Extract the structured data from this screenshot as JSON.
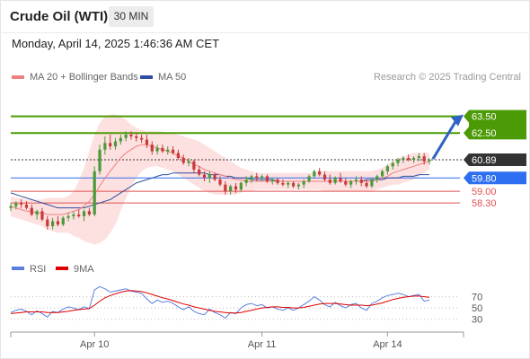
{
  "header": {
    "symbol": "Crude Oil (WTI)",
    "timeframe": "30 MIN"
  },
  "datetime": "Monday, April 14, 2025 1:46:36 AM CET",
  "legend": {
    "ma20_label": "MA 20 + Bollinger Bands",
    "ma50_label": "MA 50",
    "credit": "Research © 2025 Trading Central"
  },
  "colors": {
    "ma20": "#f08080",
    "ma50": "#2c4f9e",
    "bollinger_fill": "#fde0e0",
    "resistance": "#4b9a06",
    "pivot": "#2d6ff0",
    "support": "#e05050",
    "last_price": "#333333",
    "rsi": "#5b7fe0",
    "rsi_ma": "#e00000",
    "candle_up": "#4a9a3a",
    "candle_down": "#c83a3a"
  },
  "chart_data": [
    {
      "type": "candlestick",
      "title": "",
      "x_ticks": [
        "Apr 10",
        "Apr 11",
        "Apr 14"
      ],
      "ylim": [
        56.2,
        65.1
      ],
      "levels": [
        {
          "value": 63.5,
          "label": "63.50",
          "kind": "resistance"
        },
        {
          "value": 62.5,
          "label": "62.50",
          "kind": "resistance"
        },
        {
          "value": 60.89,
          "label": "60.89",
          "kind": "last"
        },
        {
          "value": 59.8,
          "label": "59.80",
          "kind": "pivot"
        },
        {
          "value": 59.0,
          "label": "59.00",
          "kind": "support"
        },
        {
          "value": 58.3,
          "label": "58.30",
          "kind": "support"
        }
      ],
      "ohlc": [
        [
          58.0,
          58.3,
          57.8,
          58.1
        ],
        [
          58.1,
          58.4,
          57.9,
          58.3
        ],
        [
          58.3,
          58.5,
          58.0,
          58.2
        ],
        [
          58.2,
          58.4,
          57.9,
          58.0
        ],
        [
          58.0,
          58.2,
          57.5,
          57.6
        ],
        [
          57.6,
          57.9,
          57.3,
          57.8
        ],
        [
          57.8,
          58.0,
          57.2,
          57.3
        ],
        [
          57.3,
          57.5,
          56.7,
          56.9
        ],
        [
          56.9,
          57.4,
          56.7,
          57.2
        ],
        [
          57.2,
          57.5,
          56.9,
          57.0
        ],
        [
          57.0,
          57.5,
          56.9,
          57.4
        ],
        [
          57.4,
          57.7,
          57.2,
          57.5
        ],
        [
          57.5,
          57.8,
          57.3,
          57.6
        ],
        [
          57.6,
          57.9,
          57.4,
          57.5
        ],
        [
          57.5,
          57.9,
          57.2,
          57.8
        ],
        [
          57.8,
          58.0,
          57.5,
          57.6
        ],
        [
          57.6,
          60.5,
          57.5,
          60.2
        ],
        [
          60.2,
          61.8,
          60.0,
          61.5
        ],
        [
          61.5,
          62.3,
          61.2,
          61.9
        ],
        [
          61.9,
          62.4,
          61.5,
          61.7
        ],
        [
          61.7,
          62.2,
          61.5,
          62.0
        ],
        [
          62.0,
          62.4,
          61.8,
          62.2
        ],
        [
          62.2,
          62.6,
          62.0,
          62.4
        ],
        [
          62.4,
          62.6,
          62.1,
          62.3
        ],
        [
          62.3,
          62.5,
          62.0,
          62.2
        ],
        [
          62.2,
          62.4,
          61.9,
          62.1
        ],
        [
          62.1,
          62.4,
          61.6,
          61.8
        ],
        [
          61.8,
          62.0,
          61.2,
          61.4
        ],
        [
          61.4,
          61.8,
          61.2,
          61.6
        ],
        [
          61.6,
          61.8,
          61.3,
          61.4
        ],
        [
          61.4,
          61.7,
          61.2,
          61.5
        ],
        [
          61.5,
          61.7,
          61.2,
          61.3
        ],
        [
          61.3,
          61.5,
          60.9,
          61.0
        ],
        [
          61.0,
          61.2,
          60.6,
          60.7
        ],
        [
          60.7,
          61.0,
          60.5,
          60.8
        ],
        [
          60.8,
          60.9,
          60.1,
          60.3
        ],
        [
          60.3,
          60.5,
          59.9,
          60.0
        ],
        [
          60.0,
          60.2,
          59.6,
          59.8
        ],
        [
          59.8,
          60.2,
          59.5,
          60.0
        ],
        [
          60.0,
          60.1,
          59.6,
          59.7
        ],
        [
          59.7,
          59.9,
          59.3,
          59.4
        ],
        [
          59.4,
          59.6,
          58.8,
          59.0
        ],
        [
          59.0,
          59.4,
          58.8,
          59.3
        ],
        [
          59.3,
          59.5,
          58.9,
          59.1
        ],
        [
          59.1,
          59.6,
          59.0,
          59.5
        ],
        [
          59.5,
          59.9,
          59.3,
          59.7
        ],
        [
          59.7,
          60.0,
          59.5,
          59.9
        ],
        [
          59.9,
          60.1,
          59.6,
          59.8
        ],
        [
          59.8,
          60.0,
          59.6,
          59.9
        ],
        [
          59.9,
          60.0,
          59.5,
          59.6
        ],
        [
          59.6,
          59.8,
          59.4,
          59.7
        ],
        [
          59.7,
          59.8,
          59.4,
          59.5
        ],
        [
          59.5,
          59.7,
          59.3,
          59.4
        ],
        [
          59.4,
          59.6,
          59.2,
          59.5
        ],
        [
          59.5,
          59.6,
          59.2,
          59.3
        ],
        [
          59.3,
          59.5,
          59.1,
          59.4
        ],
        [
          59.4,
          59.7,
          59.2,
          59.6
        ],
        [
          59.6,
          60.0,
          59.5,
          59.9
        ],
        [
          59.9,
          60.3,
          59.8,
          60.2
        ],
        [
          60.2,
          60.4,
          59.9,
          60.0
        ],
        [
          60.0,
          60.2,
          59.6,
          59.7
        ],
        [
          59.7,
          60.0,
          59.4,
          59.5
        ],
        [
          59.5,
          59.9,
          59.4,
          59.8
        ],
        [
          59.8,
          60.1,
          59.5,
          59.6
        ],
        [
          59.6,
          59.8,
          59.3,
          59.4
        ],
        [
          59.4,
          59.7,
          59.2,
          59.6
        ],
        [
          59.6,
          59.9,
          59.4,
          59.7
        ],
        [
          59.7,
          59.9,
          59.3,
          59.5
        ],
        [
          59.5,
          59.7,
          59.2,
          59.3
        ],
        [
          59.3,
          59.8,
          59.2,
          59.7
        ],
        [
          59.7,
          60.0,
          59.5,
          59.9
        ],
        [
          59.9,
          60.3,
          59.8,
          60.2
        ],
        [
          60.2,
          60.6,
          60.0,
          60.5
        ],
        [
          60.5,
          60.8,
          60.3,
          60.7
        ],
        [
          60.7,
          61.0,
          60.5,
          60.9
        ],
        [
          60.9,
          61.1,
          60.7,
          61.0
        ],
        [
          61.0,
          61.2,
          60.8,
          60.9
        ],
        [
          60.9,
          61.1,
          60.7,
          61.0
        ],
        [
          61.0,
          61.3,
          60.8,
          61.1
        ],
        [
          61.1,
          61.3,
          60.6,
          60.8
        ],
        [
          60.8,
          61.0,
          60.6,
          60.89
        ]
      ],
      "ma20": [
        58.1,
        58.0,
        57.9,
        57.8,
        57.8,
        57.7,
        57.7,
        57.6,
        57.6,
        57.6,
        57.6,
        57.7,
        57.8,
        57.9,
        58.1,
        58.4,
        58.8,
        59.3,
        59.8,
        60.2,
        60.6,
        61.0,
        61.3,
        61.5,
        61.7,
        61.8,
        61.8,
        61.7,
        61.6,
        61.5,
        61.4,
        61.3,
        61.1,
        61.0,
        60.8,
        60.6,
        60.5,
        60.3,
        60.2,
        60.1,
        60.0,
        59.9,
        59.8,
        59.7,
        59.7,
        59.6,
        59.6,
        59.6,
        59.6,
        59.6,
        59.6,
        59.6,
        59.6,
        59.6,
        59.6,
        59.6,
        59.6,
        59.6,
        59.6,
        59.6,
        59.6,
        59.6,
        59.6,
        59.6,
        59.6,
        59.6,
        59.6,
        59.6,
        59.6,
        59.6,
        59.7,
        59.8,
        59.9,
        60.1,
        60.2,
        60.3,
        60.4,
        60.5,
        60.6,
        60.7,
        60.8
      ],
      "ma50": [
        58.9,
        58.8,
        58.7,
        58.6,
        58.5,
        58.4,
        58.3,
        58.2,
        58.1,
        58.0,
        58.0,
        58.0,
        58.0,
        58.0,
        58.0,
        58.1,
        58.2,
        58.3,
        58.4,
        58.5,
        58.7,
        58.9,
        59.1,
        59.3,
        59.5,
        59.6,
        59.7,
        59.8,
        59.9,
        60.0,
        60.0,
        60.1,
        60.1,
        60.1,
        60.1,
        60.1,
        60.1,
        60.1,
        60.0,
        60.0,
        60.0,
        59.9,
        59.9,
        59.8,
        59.8,
        59.8,
        59.7,
        59.7,
        59.7,
        59.7,
        59.7,
        59.6,
        59.6,
        59.6,
        59.6,
        59.6,
        59.6,
        59.6,
        59.6,
        59.6,
        59.6,
        59.6,
        59.6,
        59.6,
        59.6,
        59.6,
        59.6,
        59.6,
        59.7,
        59.7,
        59.7,
        59.7,
        59.8,
        59.8,
        59.8,
        59.9,
        59.9,
        59.9,
        60.0,
        60.0,
        60.0
      ],
      "bb_upper": [
        58.7,
        58.6,
        58.6,
        58.5,
        58.5,
        58.5,
        58.5,
        58.6,
        58.6,
        58.6,
        58.6,
        58.7,
        59.0,
        59.6,
        60.4,
        61.4,
        62.4,
        63.1,
        63.5,
        63.6,
        63.6,
        63.5,
        63.3,
        63.0,
        62.8,
        62.7,
        62.6,
        62.6,
        62.6,
        62.6,
        62.5,
        62.5,
        62.4,
        62.3,
        62.2,
        62.1,
        62.0,
        61.8,
        61.6,
        61.4,
        61.2,
        61.0,
        60.8,
        60.6,
        60.4,
        60.3,
        60.2,
        60.1,
        60.1,
        60.1,
        60.1,
        60.1,
        60.1,
        60.1,
        60.1,
        60.1,
        60.1,
        60.1,
        60.1,
        60.2,
        60.2,
        60.2,
        60.2,
        60.2,
        60.2,
        60.2,
        60.2,
        60.2,
        60.2,
        60.2,
        60.3,
        60.4,
        60.6,
        60.8,
        61.0,
        61.1,
        61.2,
        61.3,
        61.3,
        61.3,
        61.3
      ],
      "bb_lower": [
        57.5,
        57.4,
        57.3,
        57.2,
        57.1,
        57.0,
        56.9,
        56.7,
        56.6,
        56.5,
        56.5,
        56.5,
        56.3,
        56.2,
        56.0,
        55.9,
        55.8,
        55.9,
        56.1,
        56.5,
        57.0,
        57.8,
        58.6,
        59.2,
        59.8,
        60.2,
        60.4,
        60.5,
        60.5,
        60.4,
        60.3,
        60.2,
        60.0,
        59.8,
        59.6,
        59.4,
        59.2,
        59.0,
        58.9,
        58.8,
        58.8,
        58.8,
        58.8,
        58.8,
        58.9,
        59.0,
        59.0,
        59.1,
        59.1,
        59.1,
        59.1,
        59.1,
        59.1,
        59.1,
        59.1,
        59.1,
        59.1,
        59.1,
        59.1,
        59.1,
        59.0,
        59.0,
        59.0,
        59.0,
        59.0,
        59.0,
        59.0,
        59.0,
        59.0,
        59.0,
        59.1,
        59.2,
        59.3,
        59.4,
        59.4,
        59.5,
        59.6,
        59.7,
        59.9,
        60.1,
        60.3
      ]
    },
    {
      "type": "line",
      "title": "",
      "series": [
        {
          "name": "RSI",
          "values": [
            42,
            46,
            48,
            44,
            38,
            45,
            40,
            34,
            44,
            42,
            48,
            52,
            50,
            47,
            52,
            49,
            82,
            88,
            84,
            78,
            80,
            82,
            84,
            80,
            78,
            76,
            66,
            58,
            64,
            60,
            62,
            58,
            52,
            47,
            52,
            44,
            40,
            38,
            48,
            42,
            38,
            32,
            42,
            40,
            50,
            56,
            58,
            54,
            56,
            50,
            52,
            48,
            46,
            50,
            46,
            50,
            56,
            62,
            70,
            64,
            56,
            52,
            60,
            54,
            50,
            56,
            58,
            50,
            46,
            58,
            62,
            68,
            72,
            74,
            76,
            74,
            70,
            72,
            74,
            62,
            64
          ]
        },
        {
          "name": "9MA",
          "values": [
            40,
            41,
            42,
            43,
            43,
            43,
            43,
            42,
            42,
            42,
            43,
            44,
            46,
            47,
            48,
            49,
            55,
            62,
            68,
            72,
            75,
            78,
            80,
            81,
            80,
            79,
            77,
            74,
            71,
            68,
            66,
            63,
            60,
            57,
            55,
            52,
            50,
            48,
            46,
            44,
            43,
            42,
            41,
            41,
            42,
            44,
            46,
            48,
            50,
            51,
            52,
            52,
            51,
            51,
            50,
            50,
            51,
            53,
            55,
            57,
            58,
            58,
            58,
            57,
            56,
            55,
            55,
            55,
            54,
            55,
            57,
            59,
            62,
            65,
            67,
            69,
            70,
            71,
            71,
            70,
            69
          ]
        }
      ],
      "y_ticks": [
        30,
        50,
        70
      ],
      "ylim": [
        20,
        90
      ]
    }
  ]
}
